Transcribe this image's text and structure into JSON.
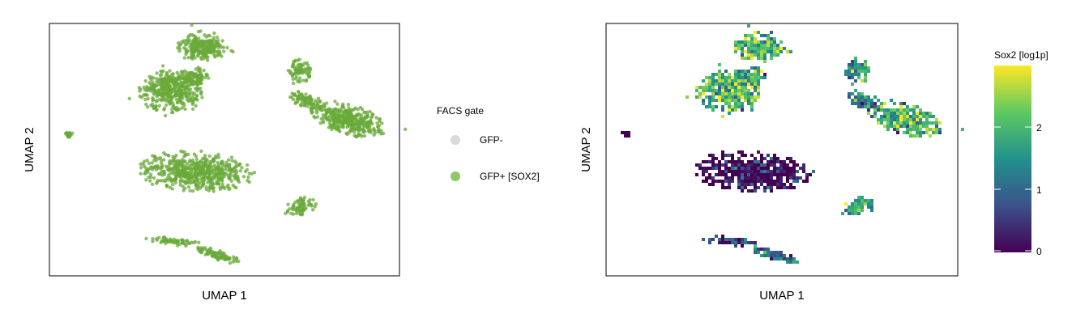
{
  "chart_data": [
    {
      "type": "scatter",
      "title": "",
      "xlabel": "UMAP 1",
      "ylabel": "UMAP 2",
      "legend": {
        "title": "FACS gate",
        "placement": "right",
        "entries": [
          {
            "label": "GFP-",
            "color": "#d9d9d9"
          },
          {
            "label": "GFP+ [SOX2]",
            "color": "#8cc76a"
          }
        ]
      },
      "point_color": "#6aaa3a",
      "series": [
        {
          "label": "GFP+ [SOX2]",
          "n_points_visible": "dense"
        }
      ]
    },
    {
      "type": "heatmap",
      "title": "",
      "xlabel": "UMAP 1",
      "ylabel": "UMAP 2",
      "colorbar": {
        "title": "Sox2 [log1p]",
        "placement": "right",
        "ticks": [
          "0",
          "1",
          "2"
        ],
        "range": [
          0,
          3
        ],
        "colormap": [
          "#440154",
          "#3b528b",
          "#21918c",
          "#5ec962",
          "#fde725"
        ]
      }
    }
  ]
}
